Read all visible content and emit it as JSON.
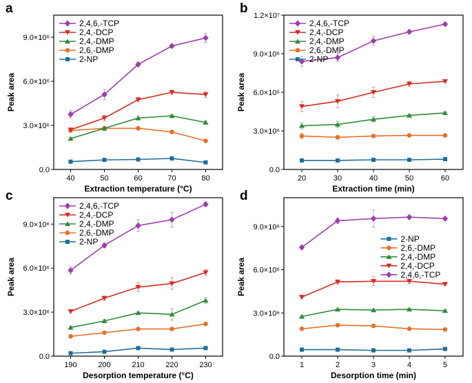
{
  "colors": {
    "2,4,6,-TCP": "#9b3fa8",
    "2,4,-DCP": "#d62b22",
    "2,4,-DMP": "#2e8b3a",
    "2,6,-DMP": "#e8702a",
    "2-NP": "#1f6e9c"
  },
  "markers": {
    "2,4,6,-TCP": "diamond",
    "2,4,-DCP": "triangle-down",
    "2,4,-DMP": "triangle-up",
    "2,6,-DMP": "circle",
    "2-NP": "square"
  },
  "chart_data": [
    {
      "panel": "a",
      "type": "line",
      "xlabel": "Extraction temperature (°C)",
      "ylabel": "Peak area",
      "x": [
        40,
        50,
        60,
        70,
        80
      ],
      "xlim": [
        35,
        85
      ],
      "ylim": [
        0,
        10500000
      ],
      "yticks": [
        0,
        3000000,
        6000000,
        9000000
      ],
      "ytick_labels": [
        "0.0",
        "3.0×10⁶",
        "6.0×10⁶",
        "9.0×10⁶"
      ],
      "legend_location": "upper-left",
      "series": [
        {
          "name": "2,4,6,-TCP",
          "values": [
            3750000,
            5100000,
            7150000,
            8400000,
            8950000
          ],
          "errors": [
            250000,
            350000,
            150000,
            120000,
            300000
          ]
        },
        {
          "name": "2,4,-DCP",
          "values": [
            2700000,
            3500000,
            4750000,
            5250000,
            5100000
          ],
          "errors": [
            100000,
            200000,
            150000,
            150000,
            200000
          ]
        },
        {
          "name": "2,4,-DMP",
          "values": [
            2100000,
            2800000,
            3500000,
            3650000,
            3200000
          ],
          "errors": [
            80000,
            150000,
            150000,
            100000,
            100000
          ]
        },
        {
          "name": "2,6,-DMP",
          "values": [
            2650000,
            2800000,
            2800000,
            2550000,
            1950000
          ],
          "errors": [
            100000,
            100000,
            100000,
            100000,
            100000
          ]
        },
        {
          "name": "2-NP",
          "values": [
            530000,
            650000,
            680000,
            750000,
            480000
          ],
          "errors": [
            30000,
            30000,
            30000,
            30000,
            30000
          ]
        }
      ]
    },
    {
      "panel": "b",
      "type": "line",
      "xlabel": "Extraction time (min)",
      "ylabel": "Peak area",
      "x": [
        20,
        30,
        40,
        50,
        60
      ],
      "xlim": [
        15,
        65
      ],
      "ylim": [
        0,
        12000000
      ],
      "yticks": [
        0,
        3000000,
        6000000,
        9000000,
        12000000
      ],
      "ytick_labels": [
        "0.0",
        "3.0×10⁶",
        "6.0×10⁶",
        "9.0×10⁶",
        "1.2×10⁷"
      ],
      "legend_location": "upper-left",
      "series": [
        {
          "name": "2,4,6,-TCP",
          "values": [
            8400000,
            8700000,
            10000000,
            10700000,
            11300000
          ],
          "errors": [
            400000,
            300000,
            350000,
            100000,
            100000
          ]
        },
        {
          "name": "2,4,-DCP",
          "values": [
            4900000,
            5300000,
            6000000,
            6650000,
            6850000
          ],
          "errors": [
            400000,
            500000,
            400000,
            200000,
            100000
          ]
        },
        {
          "name": "2,4,-DMP",
          "values": [
            3400000,
            3500000,
            3900000,
            4200000,
            4400000
          ],
          "errors": [
            250000,
            250000,
            200000,
            100000,
            100000
          ]
        },
        {
          "name": "2,6,-DMP",
          "values": [
            2600000,
            2500000,
            2600000,
            2650000,
            2650000
          ],
          "errors": [
            200000,
            150000,
            100000,
            100000,
            100000
          ]
        },
        {
          "name": "2-NP",
          "values": [
            700000,
            700000,
            750000,
            750000,
            800000
          ],
          "errors": [
            50000,
            50000,
            50000,
            50000,
            50000
          ]
        }
      ]
    },
    {
      "panel": "c",
      "type": "line",
      "xlabel": "Desorption temperature (°C)",
      "ylabel": "Peak area",
      "x": [
        190,
        200,
        210,
        220,
        230
      ],
      "xlim": [
        185,
        235
      ],
      "ylim": [
        0,
        10800000
      ],
      "yticks": [
        0,
        3000000,
        6000000,
        9000000
      ],
      "ytick_labels": [
        "0.0",
        "3.0×10⁶",
        "6.0×10⁶",
        "9.0×10⁶"
      ],
      "legend_location": "upper-left",
      "series": [
        {
          "name": "2,4,6,-TCP",
          "values": [
            5850000,
            7550000,
            8900000,
            9300000,
            10350000
          ],
          "errors": [
            250000,
            150000,
            400000,
            500000,
            150000
          ]
        },
        {
          "name": "2,4,-DCP",
          "values": [
            3050000,
            3950000,
            4700000,
            4950000,
            5700000
          ],
          "errors": [
            100000,
            150000,
            300000,
            400000,
            200000
          ]
        },
        {
          "name": "2,4,-DMP",
          "values": [
            1950000,
            2400000,
            2950000,
            2850000,
            3800000
          ],
          "errors": [
            100000,
            100000,
            100000,
            400000,
            200000
          ]
        },
        {
          "name": "2,6,-DMP",
          "values": [
            1350000,
            1600000,
            1850000,
            1850000,
            2200000
          ],
          "errors": [
            50000,
            50000,
            50000,
            100000,
            100000
          ]
        },
        {
          "name": "2-NP",
          "values": [
            200000,
            300000,
            550000,
            450000,
            550000
          ],
          "errors": [
            30000,
            30000,
            30000,
            30000,
            30000
          ]
        }
      ]
    },
    {
      "panel": "d",
      "type": "line",
      "xlabel": "Desorption time (min)",
      "ylabel": "Peak area",
      "x": [
        1,
        2,
        3,
        4,
        5
      ],
      "xlim": [
        0.5,
        5.5
      ],
      "ylim": [
        0,
        11000000
      ],
      "yticks": [
        0,
        3000000,
        6000000,
        9000000
      ],
      "ytick_labels": [
        "0.0",
        "3.0×10⁶",
        "6.0×10⁶",
        "9.0×10⁶"
      ],
      "legend_location": "center-right",
      "legend_order": [
        "2-NP",
        "2,6,-DMP",
        "2,4,-DMP",
        "2,4,-DCP",
        "2,4,6,-TCP"
      ],
      "series": [
        {
          "name": "2,4,6,-TCP",
          "values": [
            7550000,
            9400000,
            9550000,
            9650000,
            9550000
          ],
          "errors": [
            100000,
            200000,
            600000,
            100000,
            100000
          ]
        },
        {
          "name": "2,4,-DCP",
          "values": [
            4100000,
            5150000,
            5200000,
            5200000,
            5000000
          ],
          "errors": [
            100000,
            150000,
            300000,
            150000,
            100000
          ]
        },
        {
          "name": "2,4,-DMP",
          "values": [
            2750000,
            3250000,
            3200000,
            3250000,
            3150000
          ],
          "errors": [
            100000,
            100000,
            100000,
            100000,
            100000
          ]
        },
        {
          "name": "2,6,-DMP",
          "values": [
            1900000,
            2150000,
            2100000,
            1900000,
            1850000
          ],
          "errors": [
            50000,
            100000,
            100000,
            50000,
            50000
          ]
        },
        {
          "name": "2-NP",
          "values": [
            450000,
            450000,
            400000,
            400000,
            500000
          ],
          "errors": [
            30000,
            30000,
            30000,
            30000,
            30000
          ]
        }
      ]
    }
  ]
}
